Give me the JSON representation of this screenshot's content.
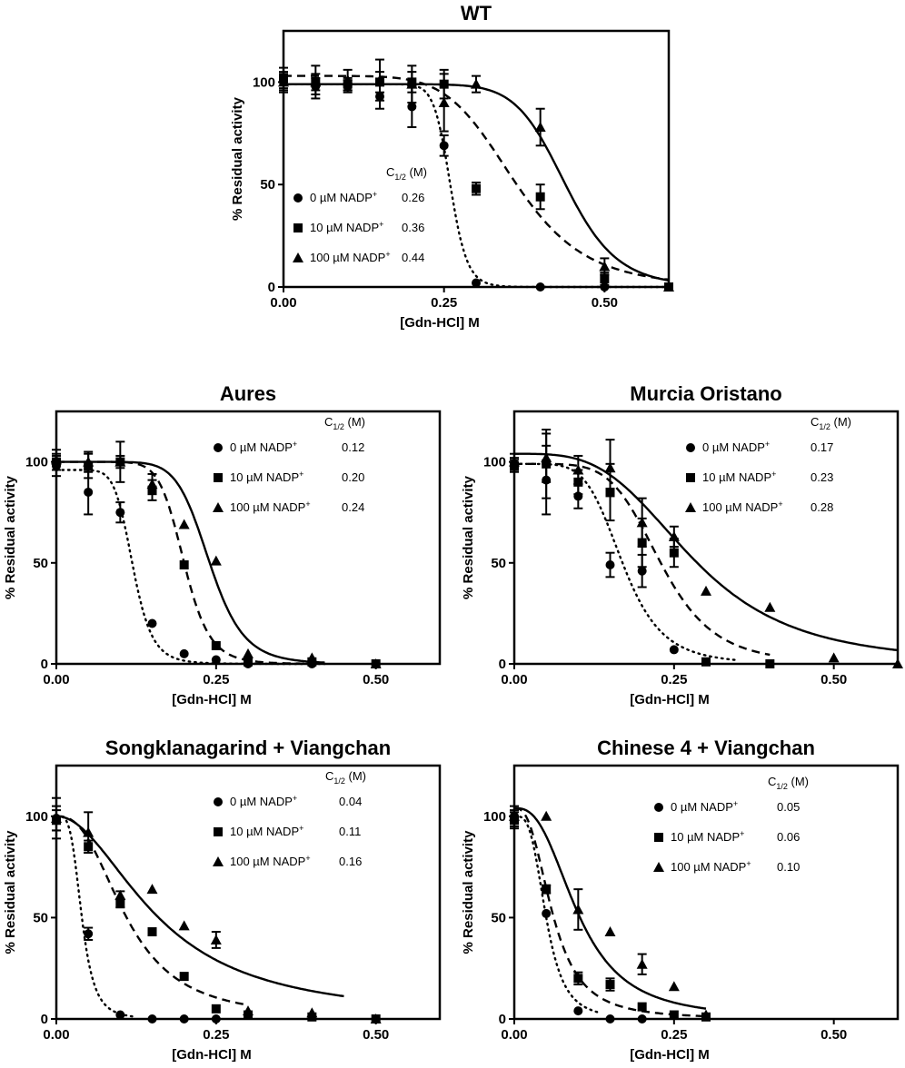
{
  "figure": {
    "ylabel": "% Residual activity",
    "xlabel": "[Gdn-HCl] M",
    "c_half_prefix": "C",
    "c_half_sub": "1/2",
    "c_half_suffix": " (M)"
  },
  "chart_data": [
    {
      "type": "scatter",
      "title": "WT",
      "xlabel": "[Gdn-HCl] M",
      "ylabel": "% Residual activity",
      "xlim": [
        0,
        0.6
      ],
      "ylim": [
        0,
        125
      ],
      "xticks": [
        "0.00",
        "0.25",
        "0.50"
      ],
      "yticks": [
        "0",
        "50",
        "100"
      ],
      "series": [
        {
          "name": "0 µM NADP⁺",
          "unit": "µM NADP",
          "conc": "0",
          "marker": "circle",
          "line": "dotted",
          "c_half": "0.26",
          "fit_top": 99,
          "fit_hill": 20,
          "x_max": 0.6,
          "points": [
            [
              0.0,
              100,
              4
            ],
            [
              0.05,
              98,
              4
            ],
            [
              0.1,
              98,
              3
            ],
            [
              0.15,
              93,
              6
            ],
            [
              0.2,
              88,
              10
            ],
            [
              0.25,
              69,
              5
            ],
            [
              0.3,
              2,
              0
            ],
            [
              0.4,
              0,
              0
            ],
            [
              0.5,
              0,
              0
            ],
            [
              0.6,
              0,
              0
            ]
          ]
        },
        {
          "name": "10 µM NADP⁺",
          "unit": "µM NADP",
          "conc": "10",
          "marker": "square",
          "line": "dashed",
          "c_half": "0.36",
          "fit_top": 103,
          "fit_hill": 6.5,
          "x_max": 0.6,
          "points": [
            [
              0.0,
              102,
              5
            ],
            [
              0.05,
              100,
              4
            ],
            [
              0.1,
              99,
              3
            ],
            [
              0.15,
              100,
              5
            ],
            [
              0.2,
              100,
              5
            ],
            [
              0.25,
              99,
              7
            ],
            [
              0.3,
              48,
              3
            ],
            [
              0.4,
              44,
              6
            ],
            [
              0.5,
              4,
              3
            ],
            [
              0.6,
              0,
              0
            ]
          ]
        },
        {
          "name": "100 µM NADP⁺",
          "unit": "µM NADP",
          "conc": "100",
          "marker": "triangle",
          "line": "solid",
          "c_half": "0.44",
          "fit_top": 99,
          "fit_hill": 11,
          "x_max": 0.6,
          "points": [
            [
              0.0,
              100,
              5
            ],
            [
              0.05,
              100,
              8
            ],
            [
              0.1,
              101,
              5
            ],
            [
              0.15,
              101,
              10
            ],
            [
              0.2,
              99,
              9
            ],
            [
              0.25,
              90,
              14
            ],
            [
              0.3,
              99,
              4
            ],
            [
              0.4,
              78,
              9
            ],
            [
              0.5,
              10,
              4
            ],
            [
              0.6,
              0,
              0
            ]
          ]
        }
      ]
    },
    {
      "type": "scatter",
      "title": "Aures",
      "xlabel": "[Gdn-HCl] M",
      "ylabel": "% Residual activity",
      "xlim": [
        0,
        0.6
      ],
      "ylim": [
        0,
        125
      ],
      "xticks": [
        "0.00",
        "0.25",
        "0.50"
      ],
      "yticks": [
        "0",
        "50",
        "100"
      ],
      "series": [
        {
          "name": "0 µM NADP⁺",
          "unit": "µM NADP",
          "conc": "0",
          "marker": "circle",
          "line": "dotted",
          "c_half": "0.12",
          "fit_top": 96,
          "fit_hill": 8,
          "x_max": 0.42,
          "points": [
            [
              0.0,
              98,
              5
            ],
            [
              0.05,
              85,
              11
            ],
            [
              0.1,
              75,
              5
            ],
            [
              0.15,
              20,
              0
            ],
            [
              0.2,
              5,
              0
            ],
            [
              0.25,
              2,
              0
            ],
            [
              0.3,
              0,
              0
            ],
            [
              0.4,
              0,
              0
            ],
            [
              0.5,
              0,
              0
            ]
          ]
        },
        {
          "name": "10 µM NADP⁺",
          "unit": "µM NADP",
          "conc": "10",
          "marker": "square",
          "line": "dashed",
          "c_half": "0.20",
          "fit_top": 100,
          "fit_hill": 10,
          "x_max": 0.42,
          "points": [
            [
              0.0,
              100,
              4
            ],
            [
              0.05,
              98,
              6
            ],
            [
              0.1,
              100,
              10
            ],
            [
              0.15,
              86,
              5
            ],
            [
              0.2,
              49,
              0
            ],
            [
              0.25,
              9,
              0
            ],
            [
              0.3,
              1,
              0
            ],
            [
              0.4,
              1,
              0
            ],
            [
              0.5,
              0,
              0
            ]
          ]
        },
        {
          "name": "100 µM NADP⁺",
          "unit": "µM NADP",
          "conc": "100",
          "marker": "triangle",
          "line": "solid",
          "c_half": "0.24",
          "fit_top": 100,
          "fit_hill": 9,
          "x_max": 0.42,
          "points": [
            [
              0.0,
              101,
              5
            ],
            [
              0.05,
              100,
              5
            ],
            [
              0.1,
              100,
              3
            ],
            [
              0.15,
              89,
              5
            ],
            [
              0.2,
              69,
              0
            ],
            [
              0.25,
              51,
              0
            ],
            [
              0.3,
              5,
              0
            ],
            [
              0.4,
              3,
              0
            ],
            [
              0.5,
              0,
              0
            ]
          ]
        }
      ]
    },
    {
      "type": "scatter",
      "title": "Murcia  Oristano",
      "xlabel": "[Gdn-HCl] M",
      "ylabel": "% Residual activity",
      "xlim": [
        0,
        0.6
      ],
      "ylim": [
        0,
        125
      ],
      "xticks": [
        "0.00",
        "0.25",
        "0.50"
      ],
      "yticks": [
        "0",
        "50",
        "100"
      ],
      "series": [
        {
          "name": "0 µM NADP⁺",
          "unit": "µM NADP",
          "conc": "0",
          "marker": "circle",
          "line": "dotted",
          "c_half": "0.17",
          "fit_top": 99,
          "fit_hill": 5.5,
          "x_max": 0.35,
          "points": [
            [
              0.0,
              99,
              3
            ],
            [
              0.05,
              91,
              17
            ],
            [
              0.1,
              83,
              6
            ],
            [
              0.15,
              49,
              6
            ],
            [
              0.2,
              46,
              8
            ],
            [
              0.25,
              7,
              0
            ]
          ]
        },
        {
          "name": "10 µM NADP⁺",
          "unit": "µM NADP",
          "conc": "10",
          "marker": "square",
          "line": "dashed",
          "c_half": "0.23",
          "fit_top": 99,
          "fit_hill": 5.5,
          "x_max": 0.4,
          "points": [
            [
              0.0,
              98,
              3
            ],
            [
              0.05,
              99,
              17
            ],
            [
              0.1,
              90,
              6
            ],
            [
              0.15,
              85,
              14
            ],
            [
              0.2,
              60,
              12
            ],
            [
              0.25,
              55,
              7
            ],
            [
              0.3,
              1,
              0
            ],
            [
              0.4,
              0,
              0
            ]
          ]
        },
        {
          "name": "100 µM NADP⁺",
          "unit": "µM NADP",
          "conc": "100",
          "marker": "triangle",
          "line": "solid",
          "c_half": "0.28",
          "fit_top": 104,
          "fit_hill": 3.5,
          "x_max": 0.6,
          "points": [
            [
              0.0,
              100,
              4
            ],
            [
              0.05,
              102,
              12
            ],
            [
              0.1,
              96,
              7
            ],
            [
              0.15,
              97,
              14
            ],
            [
              0.2,
              70,
              12
            ],
            [
              0.25,
              63,
              5
            ],
            [
              0.3,
              36,
              0
            ],
            [
              0.4,
              28,
              0
            ],
            [
              0.5,
              3,
              0
            ],
            [
              0.6,
              0,
              0
            ]
          ]
        }
      ]
    },
    {
      "type": "scatter",
      "title": "Songklanagarind + Viangchan",
      "xlabel": "[Gdn-HCl] M",
      "ylabel": "% Residual activity",
      "xlim": [
        0,
        0.6
      ],
      "ylim": [
        0,
        125
      ],
      "xticks": [
        "0.00",
        "0.25",
        "0.50"
      ],
      "yticks": [
        "0",
        "50",
        "100"
      ],
      "series": [
        {
          "name": "0 µM NADP⁺",
          "unit": "µM NADP",
          "conc": "0",
          "marker": "circle",
          "line": "dotted",
          "c_half": "0.04",
          "fit_top": 100,
          "fit_hill": 4,
          "x_max": 0.12,
          "points": [
            [
              0.0,
              99,
              10
            ],
            [
              0.05,
              42,
              3
            ],
            [
              0.1,
              2,
              0
            ],
            [
              0.15,
              0,
              0
            ],
            [
              0.2,
              0,
              0
            ],
            [
              0.25,
              0,
              0
            ]
          ]
        },
        {
          "name": "10 µM NADP⁺",
          "unit": "µM NADP",
          "conc": "10",
          "marker": "square",
          "line": "dashed",
          "c_half": "0.11",
          "fit_top": 100,
          "fit_hill": 2.6,
          "x_max": 0.3,
          "points": [
            [
              0.0,
              98,
              5
            ],
            [
              0.05,
              85,
              3
            ],
            [
              0.1,
              57,
              2
            ],
            [
              0.15,
              43,
              0
            ],
            [
              0.2,
              21,
              0
            ],
            [
              0.25,
              5,
              0
            ],
            [
              0.3,
              2,
              0
            ],
            [
              0.4,
              1,
              0
            ],
            [
              0.5,
              0,
              0
            ]
          ]
        },
        {
          "name": "100 µM NADP⁺",
          "unit": "µM NADP",
          "conc": "100",
          "marker": "triangle",
          "line": "solid",
          "c_half": "0.16",
          "fit_top": 100,
          "fit_hill": 2,
          "x_max": 0.45,
          "points": [
            [
              0.0,
              99,
              6
            ],
            [
              0.05,
              92,
              10
            ],
            [
              0.1,
              61,
              2
            ],
            [
              0.15,
              64,
              0
            ],
            [
              0.2,
              46,
              0
            ],
            [
              0.25,
              39,
              4
            ],
            [
              0.3,
              4,
              0
            ],
            [
              0.4,
              3,
              0
            ],
            [
              0.5,
              0,
              0
            ]
          ]
        }
      ]
    },
    {
      "type": "scatter",
      "title": "Chinese 4 + Viangchan",
      "xlabel": "[Gdn-HCl] M",
      "ylabel": "% Residual activity",
      "xlim": [
        0,
        0.6
      ],
      "ylim": [
        0,
        125
      ],
      "xticks": [
        "0.00",
        "0.25",
        "0.50"
      ],
      "yticks": [
        "0",
        "50",
        "100"
      ],
      "series": [
        {
          "name": "0 µM NADP⁺",
          "unit": "µM NADP",
          "conc": "0",
          "marker": "circle",
          "line": "dotted",
          "c_half": "0.05",
          "fit_top": 100,
          "fit_hill": 3.5,
          "x_max": 0.13,
          "points": [
            [
              0.0,
              100,
              3
            ],
            [
              0.05,
              52,
              0
            ],
            [
              0.1,
              4,
              0
            ],
            [
              0.15,
              0,
              0
            ],
            [
              0.2,
              0,
              0
            ]
          ]
        },
        {
          "name": "10 µM NADP⁺",
          "unit": "µM NADP",
          "conc": "10",
          "marker": "square",
          "line": "dashed",
          "c_half": "0.06",
          "fit_top": 104,
          "fit_hill": 2.7,
          "x_max": 0.3,
          "points": [
            [
              0.0,
              98,
              4
            ],
            [
              0.05,
              64,
              2
            ],
            [
              0.1,
              20,
              3
            ],
            [
              0.15,
              17,
              3
            ],
            [
              0.2,
              6,
              0
            ],
            [
              0.25,
              2,
              0
            ],
            [
              0.3,
              1,
              0
            ]
          ]
        },
        {
          "name": "100 µM NADP⁺",
          "unit": "µM NADP",
          "conc": "100",
          "marker": "triangle",
          "line": "solid",
          "c_half": "0.10",
          "fit_top": 104,
          "fit_hill": 2.7,
          "x_max": 0.3,
          "points": [
            [
              0.0,
              100,
              5
            ],
            [
              0.05,
              100,
              0
            ],
            [
              0.1,
              54,
              10
            ],
            [
              0.15,
              43,
              0
            ],
            [
              0.2,
              27,
              5
            ],
            [
              0.25,
              16,
              0
            ],
            [
              0.3,
              2,
              0
            ]
          ]
        }
      ]
    }
  ]
}
